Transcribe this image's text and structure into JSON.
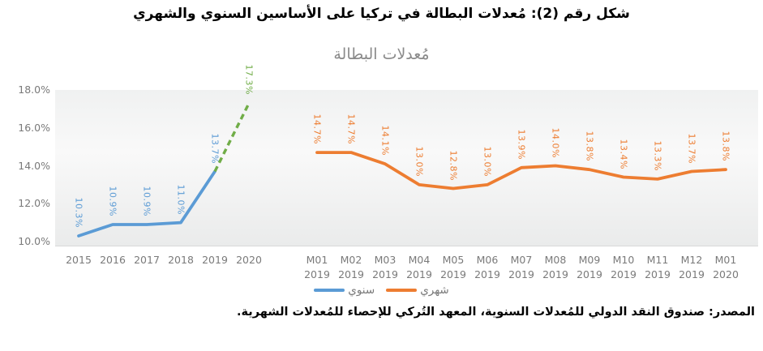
{
  "figure_title": "شكل رقم (2): مُعدلات البطالة في تركيا على الأساسين السنوي والشهري",
  "source_note": "المصدر: صندوق النقد الدولي للمُعدلات السنوية، المعهد التُركي للإحصاء للمُعدلات الشهرية.",
  "colors": {
    "annual_line": "#5b9bd5",
    "forecast_line": "#70ad47",
    "monthly_line": "#ed7d31",
    "axis_text": "#7a7a7a",
    "chart_title_text": "#8a8a8a",
    "axis_line": "#d9d9d9"
  },
  "chart_data": {
    "type": "line",
    "title": "مُعدلات البطالة",
    "xlabel": "",
    "ylabel": "",
    "ylim": [
      10,
      18
    ],
    "grid": false,
    "legend_position": "bottom",
    "y_ticks": [
      {
        "value": 10,
        "label": "10.0%"
      },
      {
        "value": 12,
        "label": "12.0%"
      },
      {
        "value": 14,
        "label": "14.0%"
      },
      {
        "value": 16,
        "label": "16.0%"
      },
      {
        "value": 18,
        "label": "18.0%"
      }
    ],
    "series": [
      {
        "name": "سنوي",
        "color": "#5b9bd5",
        "x": [
          "2015",
          "2016",
          "2017",
          "2018",
          "2019",
          "2020"
        ],
        "values": [
          10.3,
          10.9,
          10.9,
          11.0,
          13.7,
          17.3
        ],
        "labels": [
          "10.3%",
          "10.9%",
          "10.9%",
          "11.0%",
          "13.7%",
          "17.3%"
        ],
        "label_colors": [
          "#5b9bd5",
          "#5b9bd5",
          "#5b9bd5",
          "#5b9bd5",
          "#5b9bd5",
          "#70ad47"
        ],
        "segments": [
          {
            "from": 0,
            "to": 4,
            "style": "solid",
            "color": "#5b9bd5"
          },
          {
            "from": 4,
            "to": 5,
            "style": "dashed",
            "color": "#70ad47"
          }
        ]
      },
      {
        "name": "شهري",
        "color": "#ed7d31",
        "x": [
          {
            "month": "M01",
            "year": "2019"
          },
          {
            "month": "M02",
            "year": "2019"
          },
          {
            "month": "M03",
            "year": "2019"
          },
          {
            "month": "M04",
            "year": "2019"
          },
          {
            "month": "M05",
            "year": "2019"
          },
          {
            "month": "M06",
            "year": "2019"
          },
          {
            "month": "M07",
            "year": "2019"
          },
          {
            "month": "M08",
            "year": "2019"
          },
          {
            "month": "M09",
            "year": "2019"
          },
          {
            "month": "M10",
            "year": "2019"
          },
          {
            "month": "M11",
            "year": "2019"
          },
          {
            "month": "M12",
            "year": "2019"
          },
          {
            "month": "M01",
            "year": "2020"
          }
        ],
        "values": [
          14.7,
          14.7,
          14.1,
          13.0,
          12.8,
          13.0,
          13.9,
          14.0,
          13.8,
          13.4,
          13.3,
          13.7,
          13.8
        ],
        "labels": [
          "14.7%",
          "14.7%",
          "14.1%",
          "13.0%",
          "12.8%",
          "13.0%",
          "13.9%",
          "14.0%",
          "13.8%",
          "13.4%",
          "13.3%",
          "13.7%",
          "13.8%"
        ]
      }
    ]
  }
}
